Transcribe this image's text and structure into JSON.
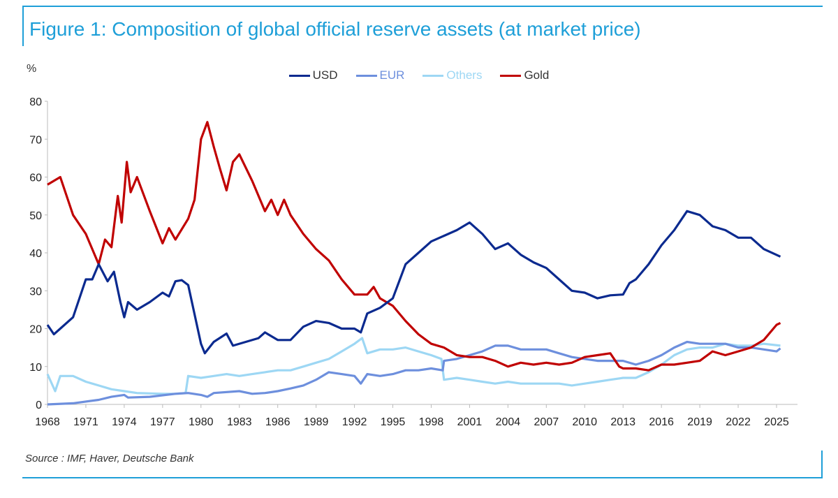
{
  "title": "Figure 1: Composition of global official reserve assets (at market price)",
  "source": "Source : IMF, Haver, Deutsche Bank",
  "colors": {
    "title": "#1e9fd8",
    "USD": "#0b2a8f",
    "EUR": "#6d8fdd",
    "Others": "#9dd7f4",
    "Gold": "#c00000"
  },
  "chart_data": {
    "type": "line",
    "title": "Composition of global official reserve assets (at market price)",
    "ylabel": "%",
    "xlabel": "",
    "ylim": [
      0,
      80
    ],
    "xlim": [
      1968,
      2025.5
    ],
    "yticks": [
      0,
      10,
      20,
      30,
      40,
      50,
      60,
      70,
      80
    ],
    "xticks": [
      1968,
      1971,
      1974,
      1977,
      1980,
      1983,
      1986,
      1989,
      1992,
      1995,
      1998,
      2001,
      2004,
      2007,
      2010,
      2013,
      2016,
      2019,
      2022,
      2025
    ],
    "grid": false,
    "legend_position": "top-center",
    "series": [
      {
        "name": "USD",
        "points": [
          [
            1968,
            21
          ],
          [
            1968.5,
            18.5
          ],
          [
            1969,
            20
          ],
          [
            1970,
            23
          ],
          [
            1971,
            33
          ],
          [
            1971.5,
            33
          ],
          [
            1972,
            37
          ],
          [
            1972.7,
            32.5
          ],
          [
            1973.2,
            35
          ],
          [
            1973.7,
            27
          ],
          [
            1974,
            23
          ],
          [
            1974.3,
            27
          ],
          [
            1975,
            25
          ],
          [
            1976,
            27
          ],
          [
            1977,
            29.5
          ],
          [
            1977.5,
            28.5
          ],
          [
            1978,
            32.5
          ],
          [
            1978.5,
            32.8
          ],
          [
            1979,
            31.5
          ],
          [
            1980,
            16
          ],
          [
            1980.3,
            13.5
          ],
          [
            1981,
            16.5
          ],
          [
            1982,
            18.7
          ],
          [
            1982.5,
            15.5
          ],
          [
            1983.5,
            16.5
          ],
          [
            1984.5,
            17.5
          ],
          [
            1985,
            19
          ],
          [
            1986,
            17
          ],
          [
            1987,
            17
          ],
          [
            1988,
            20.5
          ],
          [
            1989,
            22
          ],
          [
            1990,
            21.5
          ],
          [
            1991,
            20
          ],
          [
            1992,
            20
          ],
          [
            1992.5,
            19
          ],
          [
            1993,
            24
          ],
          [
            1994,
            25.5
          ],
          [
            1995,
            28
          ],
          [
            1996,
            37
          ],
          [
            1997,
            40
          ],
          [
            1998,
            43
          ],
          [
            1999,
            44.5
          ],
          [
            2000,
            46
          ],
          [
            2001,
            48
          ],
          [
            2002,
            45
          ],
          [
            2003,
            41
          ],
          [
            2004,
            42.5
          ],
          [
            2005,
            39.5
          ],
          [
            2006,
            37.5
          ],
          [
            2007,
            36
          ],
          [
            2008,
            33
          ],
          [
            2009,
            30
          ],
          [
            2010,
            29.5
          ],
          [
            2011,
            28
          ],
          [
            2012,
            28.8
          ],
          [
            2013,
            29
          ],
          [
            2013.5,
            32
          ],
          [
            2014,
            33
          ],
          [
            2015,
            37
          ],
          [
            2016,
            42
          ],
          [
            2017,
            46
          ],
          [
            2018,
            51
          ],
          [
            2019,
            50
          ],
          [
            2020,
            47
          ],
          [
            2021,
            46
          ],
          [
            2022,
            44
          ],
          [
            2023,
            44
          ],
          [
            2024,
            41
          ],
          [
            2025.3,
            39
          ]
        ]
      },
      {
        "name": "EUR",
        "points": [
          [
            1968,
            0
          ],
          [
            1970,
            0.3
          ],
          [
            1972,
            1.2
          ],
          [
            1973,
            2
          ],
          [
            1974,
            2.5
          ],
          [
            1974.3,
            1.8
          ],
          [
            1976,
            2
          ],
          [
            1978,
            2.8
          ],
          [
            1979,
            3
          ],
          [
            1980,
            2.5
          ],
          [
            1980.5,
            2
          ],
          [
            1981,
            3
          ],
          [
            1983,
            3.5
          ],
          [
            1984,
            2.8
          ],
          [
            1985,
            3
          ],
          [
            1986,
            3.5
          ],
          [
            1987,
            4.2
          ],
          [
            1988,
            5
          ],
          [
            1989,
            6.5
          ],
          [
            1990,
            8.5
          ],
          [
            1991,
            8
          ],
          [
            1992,
            7.5
          ],
          [
            1992.5,
            5.5
          ],
          [
            1993,
            8
          ],
          [
            1994,
            7.5
          ],
          [
            1995,
            8
          ],
          [
            1996,
            9
          ],
          [
            1997,
            9
          ],
          [
            1998,
            9.5
          ],
          [
            1998.9,
            9
          ],
          [
            1999,
            11.5
          ],
          [
            2000,
            12
          ],
          [
            2001,
            13
          ],
          [
            2002,
            14
          ],
          [
            2003,
            15.5
          ],
          [
            2004,
            15.5
          ],
          [
            2005,
            14.5
          ],
          [
            2006,
            14.5
          ],
          [
            2007,
            14.5
          ],
          [
            2008,
            13.5
          ],
          [
            2009,
            12.5
          ],
          [
            2010,
            12
          ],
          [
            2011,
            11.5
          ],
          [
            2012,
            11.5
          ],
          [
            2013,
            11.5
          ],
          [
            2014,
            10.5
          ],
          [
            2015,
            11.5
          ],
          [
            2016,
            13
          ],
          [
            2017,
            15
          ],
          [
            2018,
            16.5
          ],
          [
            2019,
            16
          ],
          [
            2020,
            16
          ],
          [
            2021,
            16
          ],
          [
            2022,
            15
          ],
          [
            2023,
            15
          ],
          [
            2024,
            14.5
          ],
          [
            2025,
            14
          ],
          [
            2025.3,
            14.8
          ]
        ]
      },
      {
        "name": "Others",
        "points": [
          [
            1968,
            8
          ],
          [
            1968.6,
            3.5
          ],
          [
            1969,
            7.5
          ],
          [
            1970,
            7.5
          ],
          [
            1971,
            6
          ],
          [
            1972,
            5
          ],
          [
            1973,
            4
          ],
          [
            1974,
            3.5
          ],
          [
            1975,
            3
          ],
          [
            1977,
            2.8
          ],
          [
            1978,
            2.8
          ],
          [
            1978.8,
            3
          ],
          [
            1979,
            7.5
          ],
          [
            1980,
            7
          ],
          [
            1981,
            7.5
          ],
          [
            1982,
            8
          ],
          [
            1983,
            7.5
          ],
          [
            1984,
            8
          ],
          [
            1985,
            8.5
          ],
          [
            1986,
            9
          ],
          [
            1987,
            9
          ],
          [
            1988,
            10
          ],
          [
            1989,
            11
          ],
          [
            1990,
            12
          ],
          [
            1991,
            14
          ],
          [
            1992,
            16
          ],
          [
            1992.6,
            17.5
          ],
          [
            1993,
            13.5
          ],
          [
            1994,
            14.5
          ],
          [
            1995,
            14.5
          ],
          [
            1996,
            15
          ],
          [
            1997,
            14
          ],
          [
            1998,
            13
          ],
          [
            1998.8,
            12
          ],
          [
            1999,
            6.5
          ],
          [
            2000,
            7
          ],
          [
            2001,
            6.5
          ],
          [
            2002,
            6
          ],
          [
            2003,
            5.5
          ],
          [
            2004,
            6
          ],
          [
            2005,
            5.5
          ],
          [
            2006,
            5.5
          ],
          [
            2007,
            5.5
          ],
          [
            2008,
            5.5
          ],
          [
            2009,
            5
          ],
          [
            2010,
            5.5
          ],
          [
            2011,
            6
          ],
          [
            2012,
            6.5
          ],
          [
            2013,
            7
          ],
          [
            2014,
            7
          ],
          [
            2015,
            8.5
          ],
          [
            2016,
            10.5
          ],
          [
            2017,
            13
          ],
          [
            2018,
            14.5
          ],
          [
            2019,
            15
          ],
          [
            2020,
            15
          ],
          [
            2021,
            16
          ],
          [
            2022,
            15.5
          ],
          [
            2023,
            15.5
          ],
          [
            2024,
            16
          ],
          [
            2025.3,
            15.5
          ]
        ]
      },
      {
        "name": "Gold",
        "points": [
          [
            1968,
            58
          ],
          [
            1969,
            60
          ],
          [
            1970,
            50
          ],
          [
            1971,
            45
          ],
          [
            1972,
            37
          ],
          [
            1972.5,
            43.5
          ],
          [
            1973,
            41.5
          ],
          [
            1973.5,
            55
          ],
          [
            1973.8,
            48
          ],
          [
            1974.2,
            64
          ],
          [
            1974.5,
            56
          ],
          [
            1975,
            60
          ],
          [
            1976,
            51
          ],
          [
            1977,
            42.5
          ],
          [
            1977.5,
            46.5
          ],
          [
            1978,
            43.5
          ],
          [
            1979,
            49
          ],
          [
            1979.5,
            54
          ],
          [
            1980,
            70
          ],
          [
            1980.5,
            74.5
          ],
          [
            1981,
            68
          ],
          [
            1981.5,
            62
          ],
          [
            1982,
            56.5
          ],
          [
            1982.5,
            64
          ],
          [
            1983,
            66
          ],
          [
            1984,
            59
          ],
          [
            1985,
            51
          ],
          [
            1985.5,
            54
          ],
          [
            1986,
            50
          ],
          [
            1986.5,
            54
          ],
          [
            1987,
            50
          ],
          [
            1988,
            45
          ],
          [
            1989,
            41
          ],
          [
            1990,
            38
          ],
          [
            1991,
            33
          ],
          [
            1992,
            29
          ],
          [
            1993,
            29
          ],
          [
            1993.5,
            31
          ],
          [
            1994,
            28
          ],
          [
            1995,
            26
          ],
          [
            1996,
            22
          ],
          [
            1997,
            18.5
          ],
          [
            1998,
            16
          ],
          [
            1999,
            15
          ],
          [
            2000,
            13
          ],
          [
            2001,
            12.5
          ],
          [
            2002,
            12.5
          ],
          [
            2003,
            11.5
          ],
          [
            2004,
            10
          ],
          [
            2005,
            11
          ],
          [
            2006,
            10.5
          ],
          [
            2007,
            11
          ],
          [
            2008,
            10.5
          ],
          [
            2009,
            11
          ],
          [
            2010,
            12.5
          ],
          [
            2011,
            13
          ],
          [
            2012,
            13.5
          ],
          [
            2012.7,
            10
          ],
          [
            2013,
            9.5
          ],
          [
            2014,
            9.5
          ],
          [
            2015,
            9
          ],
          [
            2016,
            10.5
          ],
          [
            2017,
            10.5
          ],
          [
            2018,
            11
          ],
          [
            2019,
            11.5
          ],
          [
            2020,
            14
          ],
          [
            2021,
            13
          ],
          [
            2022,
            14
          ],
          [
            2023,
            15
          ],
          [
            2024,
            17
          ],
          [
            2025,
            21
          ],
          [
            2025.3,
            21.5
          ]
        ]
      }
    ]
  }
}
